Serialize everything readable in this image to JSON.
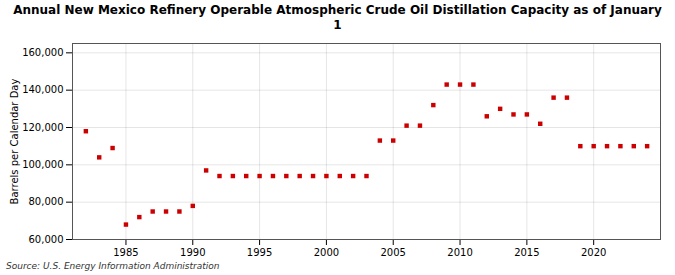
{
  "chart_data": {
    "type": "scatter",
    "title": "Annual New Mexico Refinery Operable Atmospheric Crude Oil Distillation Capacity as of January\n1",
    "ylabel": "Barrels per Calendar Day",
    "source": "Source: U.S. Energy Information Administration",
    "x": [
      1982,
      1983,
      1984,
      1985,
      1986,
      1987,
      1988,
      1989,
      1990,
      1991,
      1992,
      1993,
      1994,
      1995,
      1996,
      1997,
      1998,
      1999,
      2000,
      2001,
      2002,
      2003,
      2004,
      2005,
      2006,
      2007,
      2008,
      2009,
      2010,
      2011,
      2012,
      2013,
      2014,
      2015,
      2016,
      2017,
      2018,
      2019,
      2020,
      2021,
      2022,
      2023,
      2024
    ],
    "values": [
      118000,
      104000,
      109000,
      68000,
      72000,
      75000,
      75000,
      75000,
      78000,
      97000,
      94000,
      94000,
      94000,
      94000,
      94000,
      94000,
      94000,
      94000,
      94000,
      94000,
      94000,
      94000,
      113000,
      113000,
      121000,
      121000,
      132000,
      143000,
      143000,
      143000,
      126000,
      130000,
      127000,
      127000,
      122000,
      136000,
      136000,
      110000,
      110000,
      110000,
      110000,
      110000,
      110000
    ],
    "color": "#cc0000",
    "marker": "square",
    "xlim": [
      1981,
      2025
    ],
    "xticks": [
      1985,
      1990,
      1995,
      2000,
      2005,
      2010,
      2015,
      2020
    ],
    "ylim": [
      60000,
      165000
    ],
    "yticks": [
      {
        "value": 60000,
        "label": "60,000"
      },
      {
        "value": 80000,
        "label": "80,000"
      },
      {
        "value": 100000,
        "label": "100,000"
      },
      {
        "value": 120000,
        "label": "120,000"
      },
      {
        "value": 140000,
        "label": "140,000"
      },
      {
        "value": 160000,
        "label": "160,000"
      }
    ],
    "grid": true
  }
}
